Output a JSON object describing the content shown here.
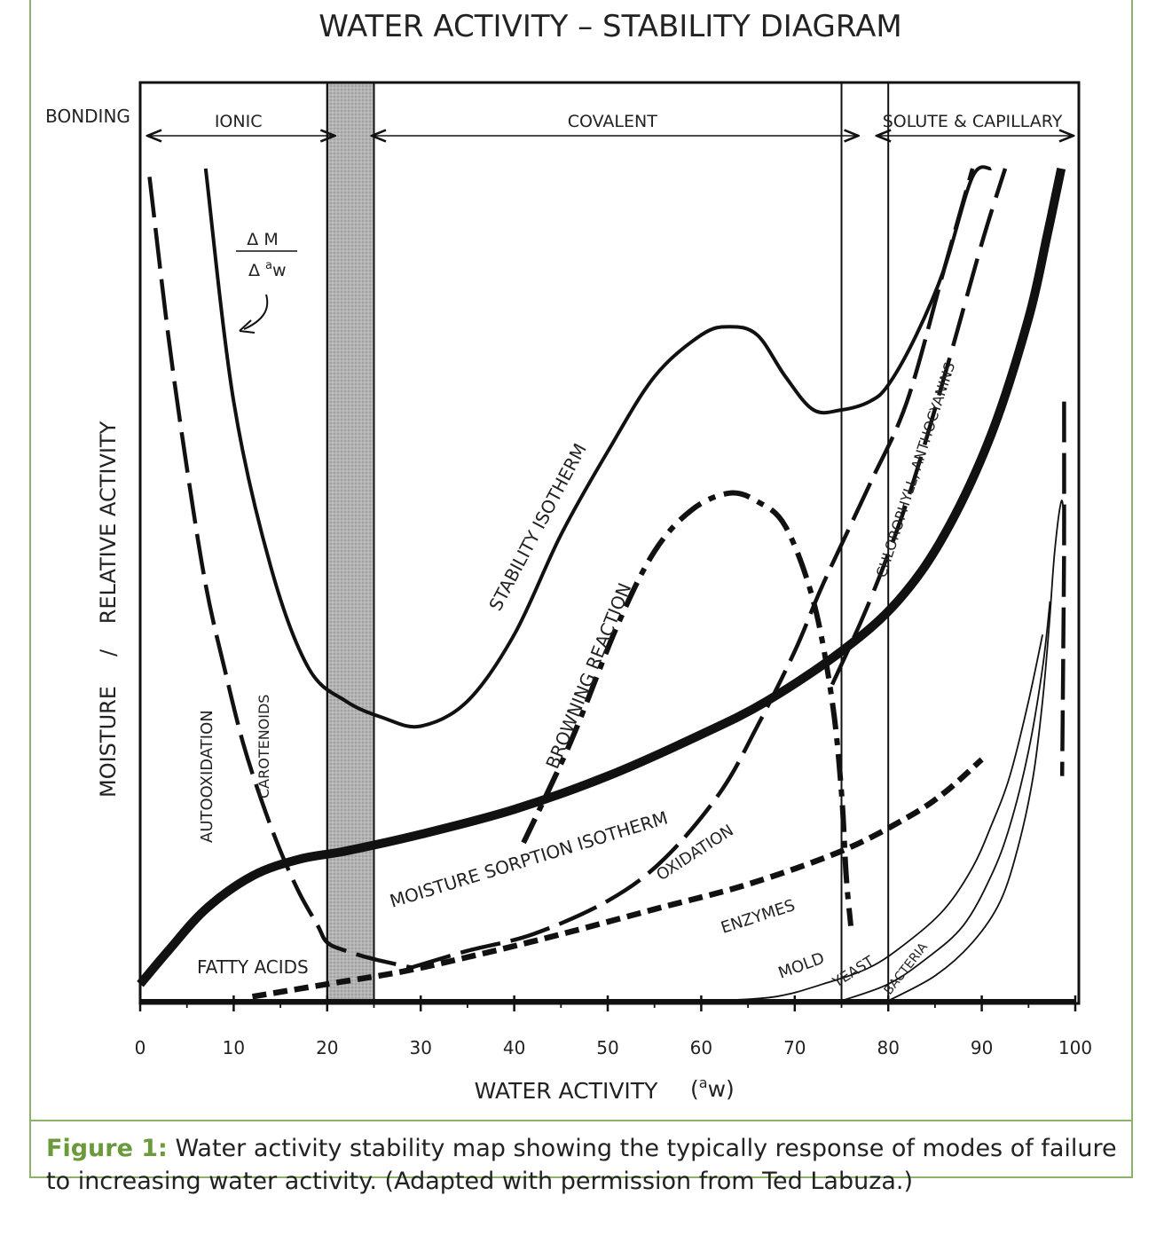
{
  "chart_data": {
    "type": "line",
    "title": "WATER ACTIVITY – STABILITY DIAGRAM",
    "xlabel": "WATER ACTIVITY",
    "xlabel_unit_base": "(",
    "xlabel_unit_sup": "a",
    "xlabel_unit_rest": "w)",
    "ylabel_left": "MOISTURE",
    "ylabel_sep": "/",
    "ylabel_right": "RELATIVE ACTIVITY",
    "xlim": [
      0,
      100
    ],
    "x_ticks": [
      "0",
      "10",
      "20",
      "30",
      "40",
      "50",
      "60",
      "70",
      "80",
      "90",
      "100"
    ],
    "bonding": {
      "label": "BONDING",
      "zones": [
        {
          "name": "IONIC",
          "x_from": 0,
          "x_to": 21
        },
        {
          "name": "COVALENT",
          "x_from": 24,
          "x_to": 77
        },
        {
          "name": "SOLUTE & CAPILLARY",
          "x_from": 78,
          "x_to": 100
        }
      ]
    },
    "shaded_band": {
      "x_from": 20,
      "x_to": 25
    },
    "vertical_lines": [
      20,
      75,
      80
    ],
    "slope_label": {
      "top": "Δ M",
      "bottom_delta": "Δ",
      "bottom_sup": "a",
      "bottom_sub": "w"
    },
    "y_range": [
      0,
      100
    ],
    "series": [
      {
        "name": "STABILITY ISOTHERM",
        "style": "solid-medium",
        "x": [
          7,
          10,
          14,
          18,
          22,
          26,
          30,
          35,
          40,
          45,
          50,
          55,
          60,
          63,
          66,
          69,
          72,
          75,
          78,
          80,
          83,
          86,
          89,
          91
        ],
        "y": [
          100,
          72,
          52,
          40,
          36,
          34,
          33,
          36,
          44,
          56,
          66,
          75,
          80,
          81,
          80,
          75,
          71,
          71,
          72,
          74,
          80,
          88,
          99,
          100
        ]
      },
      {
        "name": "MOISTURE SORPTION ISOTHERM",
        "style": "solid-thick",
        "x": [
          0,
          3,
          7,
          12,
          17,
          22,
          30,
          40,
          50,
          60,
          67,
          75,
          81,
          86,
          91,
          95,
          97,
          98.5
        ],
        "y": [
          2,
          6,
          11,
          15,
          17,
          18,
          20,
          23,
          27,
          32,
          36,
          42,
          48,
          56,
          68,
          82,
          92,
          100
        ]
      },
      {
        "name": "AUTOOXIDATION / CAROTENOIDS",
        "style": "long-dash",
        "x": [
          1,
          3,
          5,
          7,
          9,
          11,
          13,
          15,
          17,
          19,
          20,
          22,
          25,
          29
        ],
        "y": [
          99,
          80,
          64,
          50,
          40,
          31,
          24,
          18,
          13,
          9,
          7,
          6,
          5,
          4
        ]
      },
      {
        "name": "OXIDATION",
        "style": "long-dash",
        "x": [
          29,
          35,
          42,
          50,
          56,
          62,
          66,
          70,
          73,
          78,
          82,
          86,
          89
        ],
        "y": [
          4,
          6,
          8,
          12,
          17,
          25,
          33,
          42,
          50,
          62,
          72,
          88,
          100
        ]
      },
      {
        "name": "BROWNING REACTION",
        "style": "dash-dot",
        "x": [
          41,
          46,
          51,
          55,
          59,
          63,
          66,
          69,
          72,
          74,
          75,
          75.5,
          76
        ],
        "y": [
          19,
          31,
          45,
          54,
          59,
          61,
          60,
          57,
          48,
          36,
          25,
          15,
          9
        ]
      },
      {
        "name": "CHLOROPHYLL, ANTHOCYANINS",
        "style": "dash",
        "x": [
          74,
          78,
          82,
          86,
          90,
          92.5
        ],
        "y": [
          38,
          48,
          60,
          75,
          91,
          100
        ]
      },
      {
        "name": "ENZYMES",
        "style": "short-dash",
        "x": [
          12,
          20,
          28,
          36,
          45,
          55,
          65,
          75,
          82,
          86,
          90
        ],
        "y": [
          0.5,
          2,
          3.5,
          5.5,
          8,
          11,
          14,
          18,
          22,
          25,
          29
        ]
      },
      {
        "name": "MOLD",
        "style": "thin",
        "x": [
          62,
          68,
          73,
          78,
          82,
          86,
          89,
          91,
          93,
          95,
          96.5
        ],
        "y": [
          0,
          0.5,
          2,
          4,
          7,
          11,
          16,
          21,
          27,
          36,
          44
        ]
      },
      {
        "name": "YEAST",
        "style": "thin",
        "x": [
          75,
          80,
          84,
          88,
          91,
          93,
          95,
          96.5,
          97.3
        ],
        "y": [
          0,
          2,
          5,
          9,
          15,
          21,
          30,
          40,
          48
        ]
      },
      {
        "name": "BACTERIA",
        "style": "thin",
        "x": [
          80,
          85,
          89,
          92,
          94,
          95.5,
          96.5,
          97.2,
          97.8,
          98.5,
          98.8
        ],
        "y": [
          0,
          3,
          7,
          12,
          19,
          27,
          36,
          45,
          54,
          60,
          58
        ]
      },
      {
        "name": "",
        "style": "long-dash",
        "x": [
          98.8,
          98.8,
          98.7,
          98.6
        ],
        "y": [
          72,
          55,
          40,
          27
        ]
      }
    ],
    "annotations": [
      "FATTY ACIDS",
      "AUTOOXIDATION",
      "CAROTENOIDS",
      "STABILITY ISOTHERM",
      "BROWNING REACTION",
      "CHLOROPHYLL, ANTHOCYANINS",
      "MOISTURE SORPTION ISOTHERM",
      "OXIDATION",
      "ENZYMES",
      "MOLD",
      "YEAST",
      "BACTERIA"
    ],
    "grid": false
  },
  "caption": {
    "label": "Figure 1:",
    "text": " Water activity stability map showing the typically response of modes of failure to increasing water activity. (Adapted with permission from Ted Labuza.)"
  }
}
